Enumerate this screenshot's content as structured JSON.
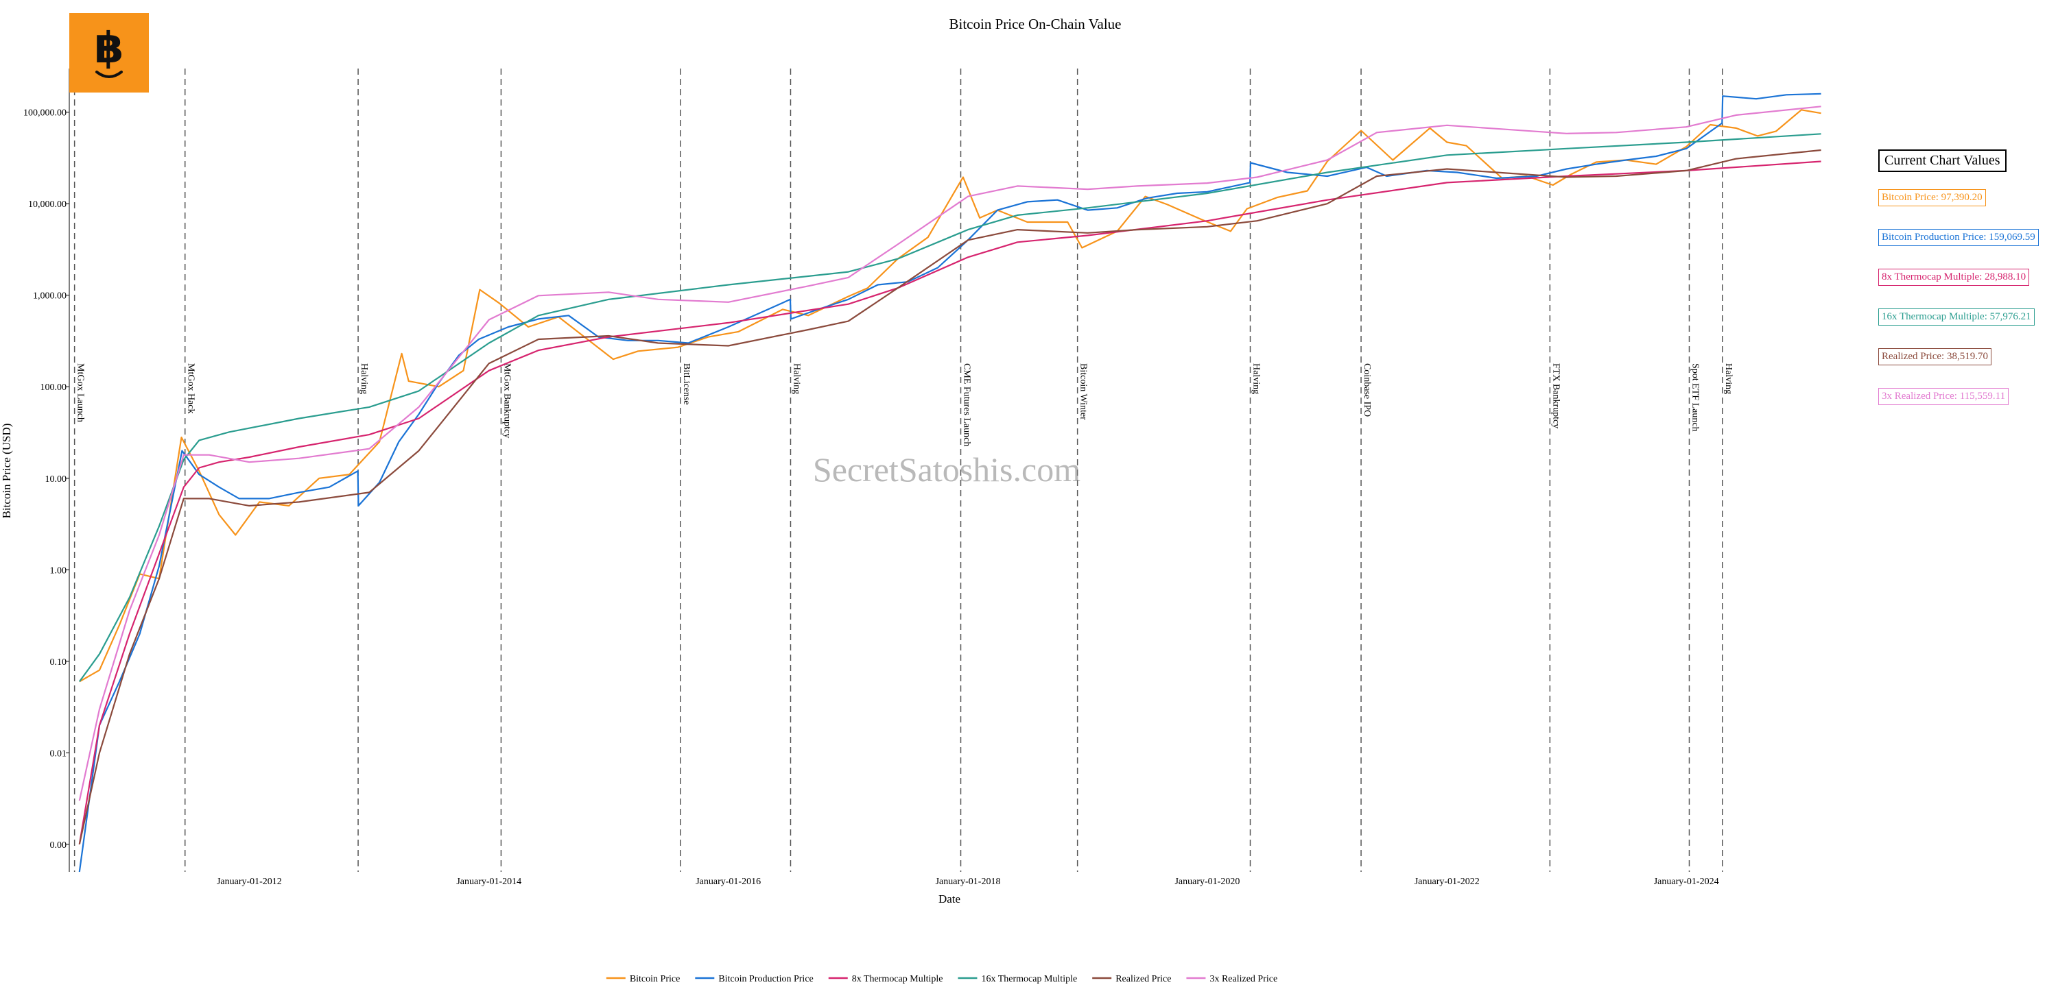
{
  "logo": {
    "symbol": "฿"
  },
  "watermark": "SecretSatoshis.com",
  "chart_data": {
    "type": "line",
    "title": "Bitcoin Price On-Chain Value",
    "xlabel": "Date",
    "ylabel": "Bitcoin Price (USD)",
    "y_scale": "log",
    "ylim": [
      0.0005,
      300000
    ],
    "xlim": [
      "2010-07-01",
      "2025-03-15"
    ],
    "grid": false,
    "legend_position": "bottom",
    "x_ticks": [
      {
        "date": "2012-01-01",
        "label": "January-01-2012"
      },
      {
        "date": "2014-01-01",
        "label": "January-01-2014"
      },
      {
        "date": "2016-01-01",
        "label": "January-01-2016"
      },
      {
        "date": "2018-01-01",
        "label": "January-01-2018"
      },
      {
        "date": "2020-01-01",
        "label": "January-01-2020"
      },
      {
        "date": "2022-01-01",
        "label": "January-01-2022"
      },
      {
        "date": "2024-01-01",
        "label": "January-01-2024"
      }
    ],
    "y_ticks": [
      {
        "value": 0.001,
        "label": "0.00"
      },
      {
        "value": 0.01,
        "label": "0.01"
      },
      {
        "value": 0.1,
        "label": "0.10"
      },
      {
        "value": 1,
        "label": "1.00"
      },
      {
        "value": 10,
        "label": "10.00"
      },
      {
        "value": 100,
        "label": "100.00"
      },
      {
        "value": 1000,
        "label": "1,000.00"
      },
      {
        "value": 10000,
        "label": "10,000.00"
      },
      {
        "value": 100000,
        "label": "100,000.00"
      }
    ],
    "events": [
      {
        "date": "2010-07-17",
        "label": "MtGox Launch"
      },
      {
        "date": "2011-06-19",
        "label": "MtGox Hack"
      },
      {
        "date": "2012-11-28",
        "label": "Halving"
      },
      {
        "date": "2014-02-07",
        "label": "MtGox Bankruptcy"
      },
      {
        "date": "2015-08-08",
        "label": "BitLicense"
      },
      {
        "date": "2016-07-09",
        "label": "Halving"
      },
      {
        "date": "2017-12-10",
        "label": "CME Futures Launch"
      },
      {
        "date": "2018-12-01",
        "label": "Bitcoin Winter"
      },
      {
        "date": "2020-05-11",
        "label": "Halving"
      },
      {
        "date": "2021-04-14",
        "label": "Coinbase IPO"
      },
      {
        "date": "2022-11-11",
        "label": "FTX Bankruptcy"
      },
      {
        "date": "2024-01-10",
        "label": "Spot ETF Launch"
      },
      {
        "date": "2024-04-20",
        "label": "Halving"
      }
    ],
    "series": [
      {
        "name": "Bitcoin Price",
        "color": "#f7931a",
        "x": [
          "2010-08-01",
          "2010-10-01",
          "2010-12-01",
          "2011-02-01",
          "2011-04-01",
          "2011-06-08",
          "2011-08-01",
          "2011-10-01",
          "2011-11-20",
          "2012-02-01",
          "2012-05-01",
          "2012-08-01",
          "2012-11-01",
          "2013-02-01",
          "2013-04-10",
          "2013-05-01",
          "2013-08-01",
          "2013-10-15",
          "2013-12-04",
          "2014-02-01",
          "2014-05-01",
          "2014-08-01",
          "2015-01-15",
          "2015-04-01",
          "2015-08-01",
          "2015-11-01",
          "2016-02-01",
          "2016-06-15",
          "2016-09-01",
          "2017-01-01",
          "2017-03-01",
          "2017-06-01",
          "2017-09-01",
          "2017-12-17",
          "2018-02-06",
          "2018-04-01",
          "2018-07-01",
          "2018-11-01",
          "2018-12-15",
          "2019-04-01",
          "2019-06-26",
          "2019-09-01",
          "2019-12-15",
          "2020-03-12",
          "2020-05-01",
          "2020-08-01",
          "2020-11-01",
          "2021-01-01",
          "2021-04-14",
          "2021-07-20",
          "2021-11-10",
          "2022-01-01",
          "2022-03-01",
          "2022-06-18",
          "2022-09-01",
          "2022-11-20",
          "2023-01-15",
          "2023-04-01",
          "2023-07-01",
          "2023-10-01",
          "2024-01-01",
          "2024-03-14",
          "2024-06-01",
          "2024-08-05",
          "2024-10-01",
          "2024-12-17",
          "2025-02-15"
        ],
        "y": [
          0.06,
          0.08,
          0.25,
          0.9,
          0.8,
          28,
          12,
          4,
          2.4,
          5.5,
          5,
          10,
          11,
          25,
          230,
          115,
          100,
          150,
          1150,
          820,
          450,
          580,
          200,
          245,
          270,
          350,
          400,
          700,
          600,
          970,
          1200,
          2500,
          4300,
          19500,
          7000,
          8500,
          6300,
          6300,
          3300,
          5000,
          12000,
          9800,
          6700,
          5000,
          8800,
          11700,
          13800,
          29000,
          63000,
          30000,
          67000,
          47000,
          43000,
          19000,
          20000,
          16000,
          21000,
          28500,
          30000,
          27000,
          42000,
          73000,
          67000,
          55000,
          62000,
          106000,
          97390.2
        ]
      },
      {
        "name": "Bitcoin Production Price",
        "color": "#1a73d6",
        "x": [
          "2010-08-01",
          "2010-10-01",
          "2010-12-01",
          "2011-02-01",
          "2011-04-01",
          "2011-06-10",
          "2011-08-01",
          "2011-10-01",
          "2011-12-01",
          "2012-03-01",
          "2012-06-01",
          "2012-09-01",
          "2012-11-27",
          "2012-11-29",
          "2013-02-01",
          "2013-04-01",
          "2013-06-01",
          "2013-08-01",
          "2013-10-01",
          "2013-12-01",
          "2014-03-01",
          "2014-06-01",
          "2014-09-01",
          "2014-12-01",
          "2015-03-01",
          "2015-06-01",
          "2015-09-01",
          "2016-01-01",
          "2016-05-01",
          "2016-07-08",
          "2016-07-10",
          "2016-10-01",
          "2017-01-01",
          "2017-04-01",
          "2017-07-01",
          "2017-10-01",
          "2018-01-01",
          "2018-04-01",
          "2018-07-01",
          "2018-10-01",
          "2019-01-01",
          "2019-04-01",
          "2019-07-01",
          "2019-10-01",
          "2020-01-01",
          "2020-05-10",
          "2020-05-12",
          "2020-09-01",
          "2021-01-01",
          "2021-05-01",
          "2021-07-01",
          "2021-11-01",
          "2022-02-01",
          "2022-06-01",
          "2022-10-01",
          "2023-01-01",
          "2023-04-01",
          "2023-07-01",
          "2023-10-01",
          "2024-01-01",
          "2024-04-19",
          "2024-04-21",
          "2024-08-01",
          "2024-11-01",
          "2025-02-15"
        ],
        "y": [
          0.0003,
          0.02,
          0.06,
          0.2,
          1.1,
          20,
          11,
          8,
          6,
          6,
          7,
          8,
          12,
          5,
          9,
          25,
          50,
          110,
          220,
          330,
          450,
          550,
          600,
          350,
          320,
          320,
          300,
          450,
          700,
          900,
          550,
          700,
          900,
          1300,
          1400,
          2000,
          4000,
          8500,
          10500,
          11000,
          8500,
          9000,
          11500,
          13000,
          13500,
          17000,
          28000,
          22000,
          20000,
          25000,
          20000,
          23000,
          22000,
          19000,
          20000,
          24000,
          27000,
          30000,
          33000,
          40000,
          76000,
          150000,
          140000,
          155000,
          159069.59
        ]
      },
      {
        "name": "8x Thermocap Multiple",
        "color": "#d6246e",
        "x": [
          "2010-08-01",
          "2010-10-01",
          "2011-01-01",
          "2011-04-01",
          "2011-06-15",
          "2011-08-01",
          "2011-10-01",
          "2012-01-01",
          "2012-06-01",
          "2013-01-01",
          "2013-06-01",
          "2014-01-01",
          "2014-06-01",
          "2015-01-01",
          "2016-01-01",
          "2017-01-01",
          "2017-06-01",
          "2018-01-01",
          "2018-06-01",
          "2019-01-01",
          "2020-01-01",
          "2021-01-01",
          "2022-01-01",
          "2023-01-01",
          "2024-01-01",
          "2025-02-15"
        ],
        "y": [
          0.001,
          0.02,
          0.2,
          1.5,
          8,
          13,
          15,
          17,
          22,
          30,
          45,
          150,
          250,
          350,
          500,
          800,
          1200,
          2600,
          3800,
          4500,
          6500,
          11000,
          17000,
          20000,
          23000,
          28988.1
        ]
      },
      {
        "name": "16x Thermocap Multiple",
        "color": "#2a9d8f",
        "x": [
          "2010-08-01",
          "2010-10-01",
          "2011-01-01",
          "2011-04-01",
          "2011-06-15",
          "2011-08-01",
          "2011-11-01",
          "2012-06-01",
          "2013-01-01",
          "2013-06-01",
          "2014-01-01",
          "2014-06-01",
          "2015-01-01",
          "2016-01-01",
          "2017-01-01",
          "2017-06-01",
          "2018-01-01",
          "2018-06-01",
          "2019-01-01",
          "2020-01-01",
          "2021-01-01",
          "2022-01-01",
          "2023-01-01",
          "2024-01-01",
          "2025-02-15"
        ],
        "y": [
          0.06,
          0.12,
          0.5,
          3,
          16,
          26,
          32,
          45,
          60,
          90,
          300,
          600,
          900,
          1300,
          1800,
          2500,
          5200,
          7500,
          9000,
          13000,
          22000,
          34000,
          40000,
          47000,
          57976.21
        ]
      },
      {
        "name": "Realized Price",
        "color": "#8b4a3c",
        "x": [
          "2010-08-01",
          "2010-10-01",
          "2011-01-01",
          "2011-04-01",
          "2011-06-15",
          "2011-09-01",
          "2012-01-01",
          "2012-06-01",
          "2013-01-01",
          "2013-06-01",
          "2014-01-01",
          "2014-06-01",
          "2015-01-01",
          "2015-06-01",
          "2016-01-01",
          "2016-09-01",
          "2017-01-01",
          "2017-06-01",
          "2018-01-01",
          "2018-06-01",
          "2019-01-01",
          "2019-06-01",
          "2020-01-01",
          "2020-06-01",
          "2021-01-01",
          "2021-06-01",
          "2022-01-01",
          "2022-06-01",
          "2023-01-01",
          "2023-06-01",
          "2024-01-01",
          "2024-06-01",
          "2025-02-15"
        ],
        "y": [
          0.001,
          0.01,
          0.12,
          0.8,
          6,
          6,
          5,
          5.5,
          7,
          20,
          180,
          330,
          360,
          300,
          280,
          420,
          520,
          1200,
          4000,
          5200,
          4800,
          5200,
          5600,
          6500,
          10000,
          20000,
          24000,
          22000,
          19500,
          20000,
          23000,
          31000,
          38519.7
        ]
      },
      {
        "name": "3x Realized Price",
        "color": "#e27bd0",
        "x": [
          "2010-08-01",
          "2010-10-01",
          "2011-01-01",
          "2011-04-01",
          "2011-06-15",
          "2011-09-01",
          "2012-01-01",
          "2012-06-01",
          "2013-01-01",
          "2013-06-01",
          "2014-01-01",
          "2014-06-01",
          "2015-01-01",
          "2015-06-01",
          "2016-01-01",
          "2016-09-01",
          "2017-01-01",
          "2017-06-01",
          "2018-01-01",
          "2018-06-01",
          "2019-01-01",
          "2019-06-01",
          "2020-01-01",
          "2020-06-01",
          "2021-01-01",
          "2021-06-01",
          "2022-01-01",
          "2022-06-01",
          "2023-01-01",
          "2023-06-01",
          "2024-01-01",
          "2024-06-01",
          "2025-02-15"
        ],
        "y": [
          0.003,
          0.03,
          0.36,
          2.4,
          18,
          18,
          15,
          16.5,
          21,
          60,
          540,
          990,
          1080,
          900,
          840,
          1260,
          1560,
          3600,
          12000,
          15600,
          14400,
          15600,
          16800,
          19500,
          30000,
          60000,
          72000,
          66000,
          58500,
          60000,
          69000,
          93000,
          115559.11
        ]
      }
    ]
  },
  "current_values": {
    "title": "Current Chart Values",
    "items": [
      {
        "label": "Bitcoin Price: 97,390.20",
        "color": "#f7931a"
      },
      {
        "label": "Bitcoin Production Price: 159,069.59",
        "color": "#1a73d6"
      },
      {
        "label": "8x Thermocap Multiple: 28,988.10",
        "color": "#d6246e"
      },
      {
        "label": "16x Thermocap Multiple: 57,976.21",
        "color": "#2a9d8f"
      },
      {
        "label": "Realized Price: 38,519.70",
        "color": "#8b4a3c"
      },
      {
        "label": "3x Realized Price: 115,559.11",
        "color": "#e27bd0"
      }
    ]
  }
}
